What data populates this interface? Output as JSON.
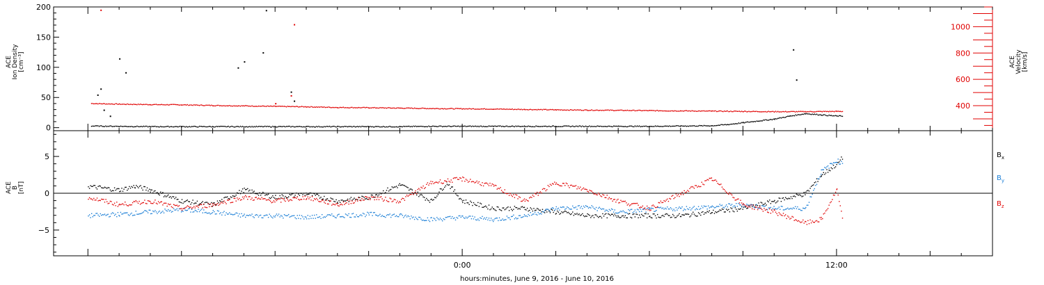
{
  "chart_data": [
    {
      "type": "scatter",
      "panel": "plasma",
      "ylabel_lines": [
        "ACE",
        "Ion Density",
        "[cm⁻³]"
      ],
      "y2label_lines": [
        "ACE",
        "Velocity",
        "[km/s]"
      ],
      "ylim": [
        -5,
        200
      ],
      "yticks": [
        0,
        50,
        100,
        150,
        200
      ],
      "y2lim": [
        210,
        1150
      ],
      "y2ticks": [
        400,
        600,
        800,
        1000
      ],
      "series": [
        {
          "color": "#000000",
          "axis": "left",
          "values": [
            [
              -11.9,
              3.5
            ],
            [
              -11.0,
              3.0
            ],
            [
              -10.0,
              2.5
            ],
            [
              -9.0,
              2.5
            ],
            [
              -8.0,
              2.5
            ],
            [
              -7.0,
              2.5
            ],
            [
              -6.0,
              2.5
            ],
            [
              -5.0,
              2.5
            ],
            [
              -4.0,
              2.5
            ],
            [
              -3.0,
              2.5
            ],
            [
              -2.0,
              2.5
            ],
            [
              -1.0,
              3.0
            ],
            [
              0.0,
              3.0
            ],
            [
              1.0,
              3.0
            ],
            [
              2.0,
              3.0
            ],
            [
              3.0,
              3.0
            ],
            [
              4.0,
              3.0
            ],
            [
              5.0,
              3.0
            ],
            [
              6.0,
              3.0
            ],
            [
              7.0,
              3.5
            ],
            [
              8.0,
              4.0
            ],
            [
              8.5,
              6.0
            ],
            [
              9.0,
              9.0
            ],
            [
              9.5,
              12.0
            ],
            [
              10.0,
              15.0
            ],
            [
              10.5,
              20.0
            ],
            [
              11.0,
              24.0
            ],
            [
              11.5,
              22.0
            ],
            [
              12.0,
              20.0
            ],
            [
              12.2,
              20.0
            ]
          ],
          "spikes": [
            [
              -11.7,
              55.0
            ],
            [
              -11.6,
              65.0
            ],
            [
              -11.5,
              30.0
            ],
            [
              -11.3,
              20.0
            ],
            [
              -11.0,
              115.0
            ],
            [
              -10.8,
              92.0
            ],
            [
              -7.2,
              100.0
            ],
            [
              -7.0,
              110.0
            ],
            [
              -6.4,
              125.0
            ],
            [
              -6.3,
              195.0
            ],
            [
              -5.5,
              60.0
            ],
            [
              -5.4,
              45.0
            ],
            [
              10.6,
              130.0
            ],
            [
              10.7,
              80.0
            ]
          ]
        },
        {
          "color": "#e00000",
          "axis": "right",
          "values": [
            [
              -11.9,
              420.0
            ],
            [
              -11.0,
              415.0
            ],
            [
              -10.0,
              412.0
            ],
            [
              -9.0,
              410.0
            ],
            [
              -8.0,
              405.0
            ],
            [
              -7.0,
              402.0
            ],
            [
              -6.0,
              398.0
            ],
            [
              -5.0,
              395.0
            ],
            [
              -4.0,
              390.0
            ],
            [
              -3.0,
              388.0
            ],
            [
              -2.0,
              385.0
            ],
            [
              -1.0,
              382.0
            ],
            [
              0.0,
              380.0
            ],
            [
              1.0,
              378.0
            ],
            [
              2.0,
              375.0
            ],
            [
              3.0,
              372.0
            ],
            [
              4.0,
              370.0
            ],
            [
              5.0,
              368.0
            ],
            [
              6.0,
              366.0
            ],
            [
              7.0,
              364.0
            ],
            [
              8.0,
              362.0
            ],
            [
              9.0,
              360.0
            ],
            [
              10.0,
              358.0
            ],
            [
              11.0,
              358.0
            ],
            [
              12.0,
              360.0
            ],
            [
              12.2,
              360.0
            ]
          ],
          "spikes": [
            [
              -11.6,
              1130.0
            ],
            [
              -5.4,
              1020.0
            ],
            [
              -5.5,
              480.0
            ],
            [
              -6.0,
              420.0
            ]
          ]
        }
      ]
    },
    {
      "type": "scatter",
      "panel": "magnetic",
      "ylabel_lines": [
        "ACE",
        "B",
        "[nT]"
      ],
      "ylim": [
        -8.5,
        8.5
      ],
      "yticks": [
        -5,
        0,
        5
      ],
      "zero_line": true,
      "series": [
        {
          "name": "B",
          "subscript": "x",
          "color": "#000000",
          "values": [
            [
              -12,
              1.0
            ],
            [
              -11,
              0.5
            ],
            [
              -10.5,
              1.0
            ],
            [
              -10,
              0.5
            ],
            [
              -9,
              -1.0
            ],
            [
              -8,
              -1.5
            ],
            [
              -7,
              0.5
            ],
            [
              -6,
              -0.5
            ],
            [
              -5,
              0.0
            ],
            [
              -4,
              -1.0
            ],
            [
              -3,
              -0.5
            ],
            [
              -2,
              1.2
            ],
            [
              -1,
              -1.0
            ],
            [
              -0.5,
              1.5
            ],
            [
              0,
              -1.0
            ],
            [
              1,
              -2.0
            ],
            [
              2,
              -2.0
            ],
            [
              3,
              -2.5
            ],
            [
              4,
              -3.0
            ],
            [
              5,
              -3.0
            ],
            [
              6,
              -3.0
            ],
            [
              7,
              -3.0
            ],
            [
              8,
              -2.5
            ],
            [
              9,
              -2.0
            ],
            [
              10,
              -1.0
            ],
            [
              11,
              0.0
            ],
            [
              11.5,
              2.5
            ],
            [
              12,
              4.0
            ],
            [
              12.2,
              5.0
            ]
          ]
        },
        {
          "name": "B",
          "subscript": "y",
          "color": "#1a7ed6",
          "values": [
            [
              -12,
              -3.0
            ],
            [
              -11,
              -2.8
            ],
            [
              -10,
              -2.5
            ],
            [
              -9,
              -2.2
            ],
            [
              -8,
              -2.5
            ],
            [
              -7,
              -3.0
            ],
            [
              -6,
              -3.0
            ],
            [
              -5,
              -3.2
            ],
            [
              -4,
              -3.0
            ],
            [
              -3,
              -2.8
            ],
            [
              -2,
              -3.0
            ],
            [
              -1,
              -3.5
            ],
            [
              0,
              -3.2
            ],
            [
              1,
              -3.5
            ],
            [
              2,
              -3.0
            ],
            [
              3,
              -2.0
            ],
            [
              4,
              -1.8
            ],
            [
              5,
              -2.5
            ],
            [
              6,
              -2.2
            ],
            [
              7,
              -2.0
            ],
            [
              8,
              -1.8
            ],
            [
              9,
              -1.5
            ],
            [
              10,
              -2.0
            ],
            [
              11,
              -2.0
            ],
            [
              11.5,
              3.0
            ],
            [
              12,
              4.5
            ],
            [
              12.2,
              4.0
            ]
          ]
        },
        {
          "name": "B",
          "subscript": "z",
          "color": "#e00000",
          "values": [
            [
              -12,
              -0.5
            ],
            [
              -11,
              -1.5
            ],
            [
              -10,
              -1.0
            ],
            [
              -9,
              -2.0
            ],
            [
              -8,
              -1.5
            ],
            [
              -7,
              -0.5
            ],
            [
              -6,
              -1.0
            ],
            [
              -5,
              -0.5
            ],
            [
              -4,
              -1.5
            ],
            [
              -3,
              -0.5
            ],
            [
              -2,
              -1.0
            ],
            [
              -1,
              1.5
            ],
            [
              0,
              2.0
            ],
            [
              1,
              1.0
            ],
            [
              2,
              -1.0
            ],
            [
              3,
              1.5
            ],
            [
              4,
              0.5
            ],
            [
              5,
              -1.0
            ],
            [
              6,
              -2.0
            ],
            [
              7,
              0.0
            ],
            [
              8,
              2.0
            ],
            [
              9,
              -1.5
            ],
            [
              10,
              -2.5
            ],
            [
              11,
              -4.0
            ],
            [
              11.5,
              -3.5
            ],
            [
              12,
              0.5
            ],
            [
              12.2,
              -4.0
            ]
          ]
        }
      ]
    }
  ],
  "x_axis": {
    "xlim": [
      -13.1,
      17.0
    ],
    "major_ticks": [
      0,
      12
    ],
    "tick_labels": [
      "0:00",
      "12:00"
    ],
    "label": "hours:minutes, June  9, 2016 - June 10, 2016"
  },
  "colors": {
    "black": "#000000",
    "red": "#e00000",
    "blue": "#1a7ed6"
  }
}
